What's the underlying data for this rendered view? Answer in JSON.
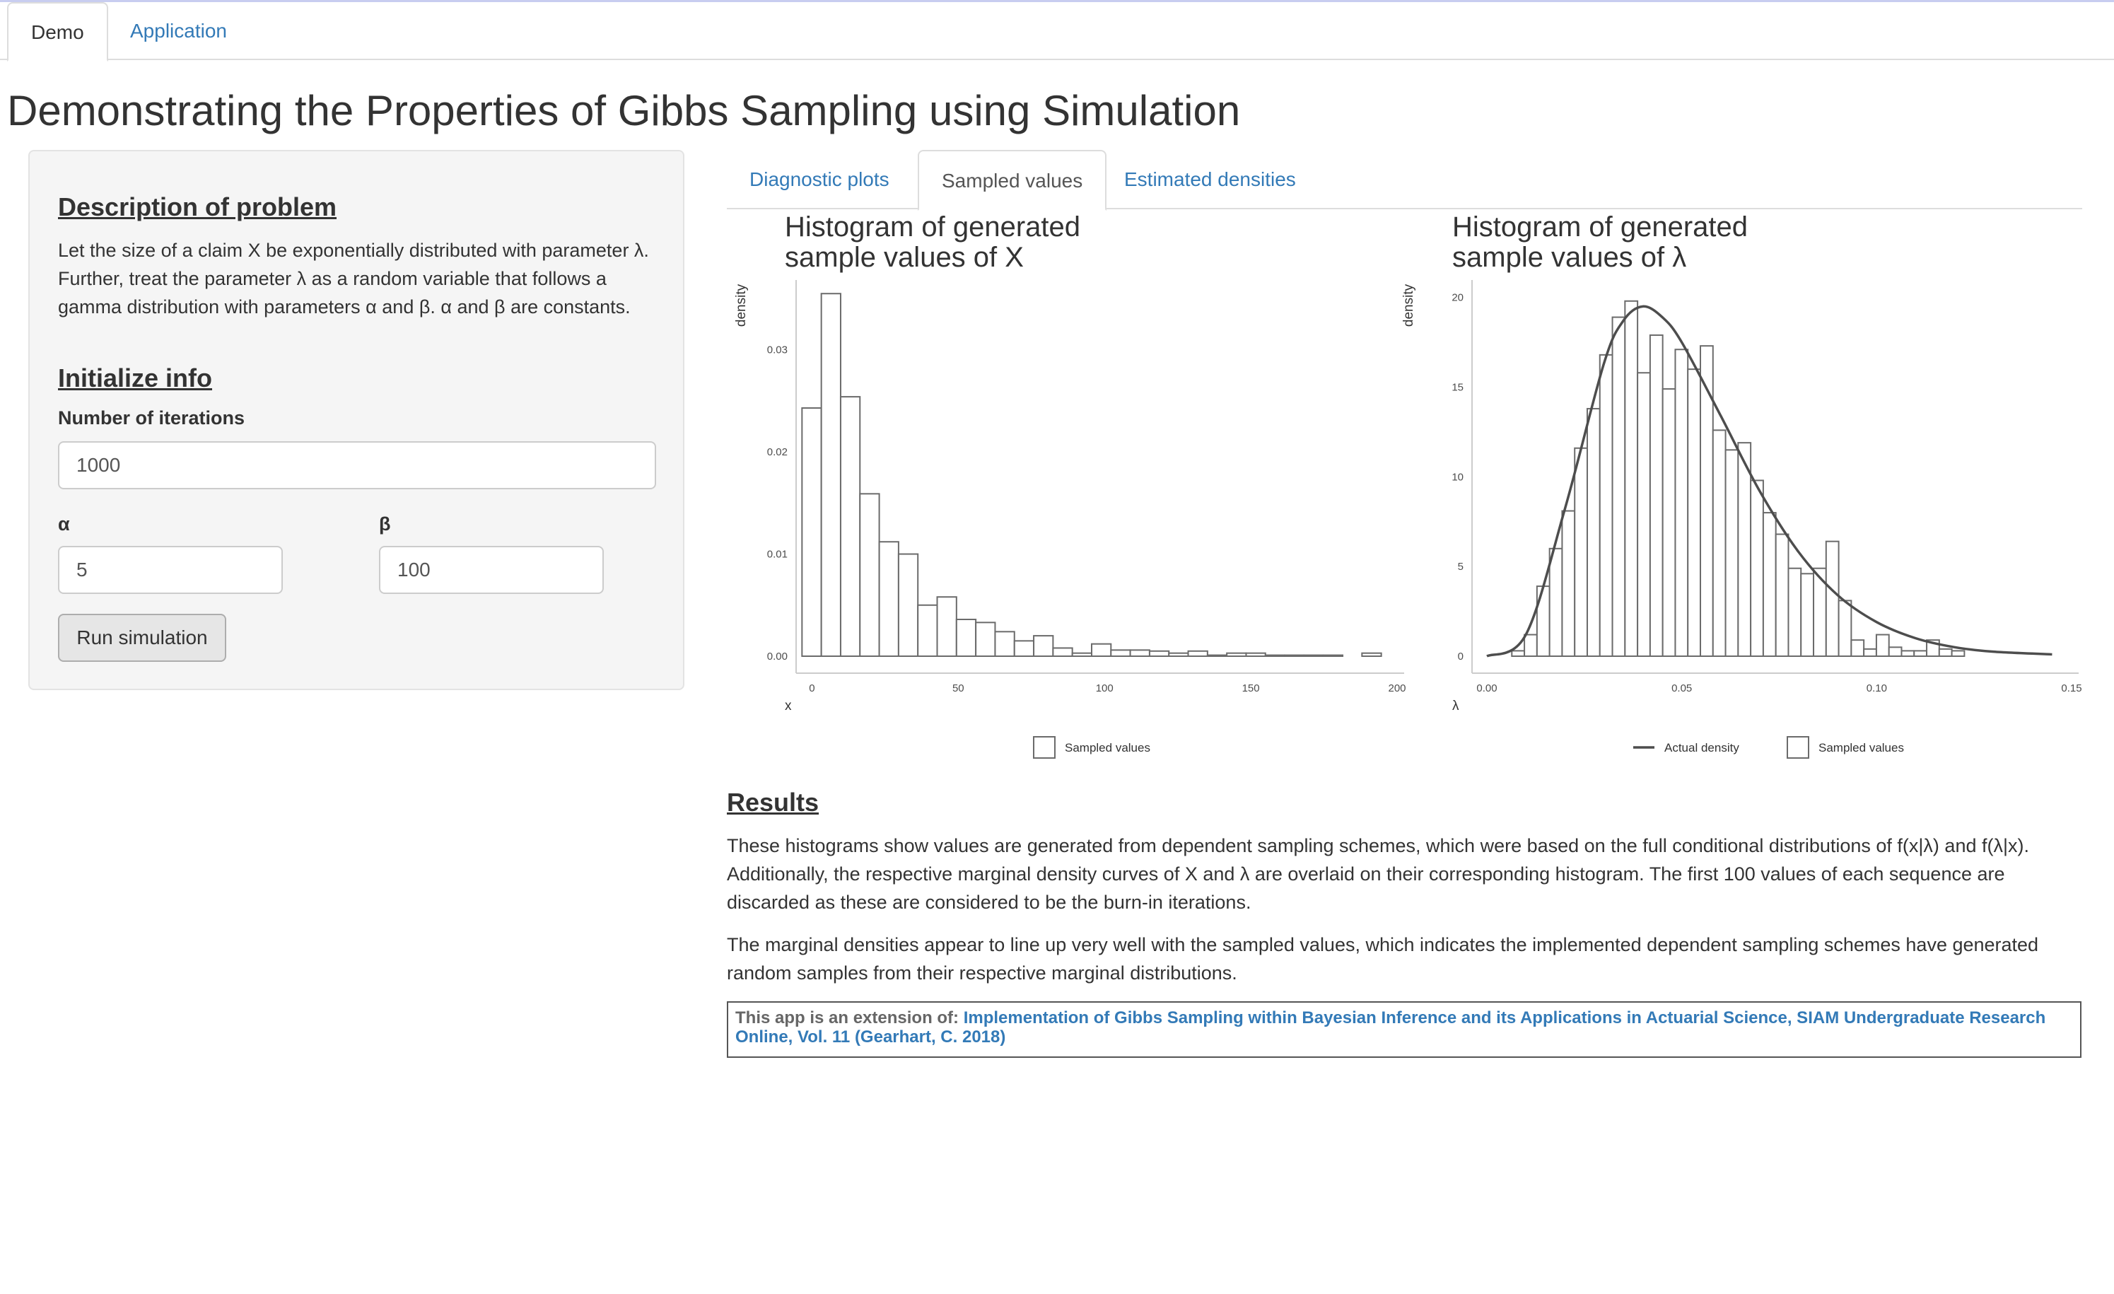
{
  "nav": {
    "tabs": [
      {
        "label": "Demo",
        "active": true
      },
      {
        "label": "Application",
        "active": false
      }
    ]
  },
  "page_title": "Demonstrating the Properties of Gibbs Sampling using Simulation",
  "sidebar": {
    "description_heading": "Description of problem",
    "description_text": "Let the size of a claim X be exponentially distributed with parameter λ. Further, treat the parameter λ as a random variable that follows a gamma distribution with parameters α and β. α and β are constants.",
    "init_heading": "Initialize info",
    "iterations_label": "Number of iterations",
    "iterations_value": "1000",
    "alpha_label": "α",
    "alpha_value": "5",
    "beta_label": "β",
    "beta_value": "100",
    "run_button": "Run simulation"
  },
  "main_tabs": [
    {
      "label": "Diagnostic plots",
      "active": false
    },
    {
      "label": "Sampled values",
      "active": true
    },
    {
      "label": "Estimated densities",
      "active": false
    }
  ],
  "chart_data": [
    {
      "type": "bar",
      "title": "Histogram of generated sample values of X",
      "title_lines": [
        "Histogram of generated",
        "sample values of X"
      ],
      "xlabel": "x",
      "ylabel": "density",
      "xlim": [
        -3,
        200
      ],
      "ylim": [
        0,
        0.036
      ],
      "xticks": [
        0,
        50,
        100,
        150,
        200
      ],
      "xtick_labels": [
        "0",
        "50",
        "100",
        "150",
        "200"
      ],
      "yticks": [
        0,
        0.01,
        0.02,
        0.03
      ],
      "ytick_labels": [
        "0.00",
        "0.01",
        "0.02",
        "0.03"
      ],
      "bin_start": -3.4,
      "bin_width": 6.6,
      "densities": [
        0.0243,
        0.0355,
        0.0254,
        0.0159,
        0.0112,
        0.01,
        0.005,
        0.0058,
        0.0036,
        0.0033,
        0.0024,
        0.0015,
        0.002,
        0.0008,
        0.0003,
        0.0012,
        0.0006,
        0.0006,
        0.0005,
        0.0003,
        0.0005,
        0.0001,
        0.0003,
        0.0003,
        0.0001,
        0.0001,
        0.0001,
        0.0001,
        0.0,
        0.0003,
        0.0,
        0.0
      ],
      "legend": [
        {
          "label": "Sampled values",
          "kind": "box"
        }
      ],
      "legend_position": "bottom"
    },
    {
      "type": "bar",
      "title": "Histogram of generated sample values of λ",
      "title_lines": [
        "Histogram of generated",
        "sample values of λ"
      ],
      "xlabel": "λ",
      "ylabel": "density",
      "xlim": [
        -0.002,
        0.15
      ],
      "ylim": [
        0,
        20.5
      ],
      "xticks": [
        0,
        0.05,
        0.1,
        0.15
      ],
      "xtick_labels": [
        "0.00",
        "0.05",
        "0.10",
        "0.15"
      ],
      "yticks": [
        0,
        5,
        10,
        15,
        20
      ],
      "ytick_labels": [
        "0",
        "5",
        "10",
        "15",
        "20"
      ],
      "bin_start": 0.0064,
      "bin_width": 0.003225,
      "densities": [
        0.3,
        1.2,
        3.9,
        6.0,
        8.1,
        11.6,
        13.8,
        16.8,
        18.9,
        19.8,
        15.8,
        17.9,
        14.9,
        17.1,
        16.0,
        17.3,
        12.6,
        11.5,
        11.9,
        9.8,
        8.0,
        6.8,
        4.9,
        4.6,
        4.9,
        6.4,
        3.1,
        0.9,
        0.4,
        1.2,
        0.5,
        0.3,
        0.3,
        0.9,
        0.4,
        0.3
      ],
      "curve": {
        "name": "Actual density",
        "x": [
          0,
          0.01,
          0.02,
          0.03,
          0.035,
          0.04,
          0.045,
          0.05,
          0.06,
          0.07,
          0.08,
          0.09,
          0.1,
          0.11,
          0.12,
          0.13,
          0.145
        ],
        "y": [
          0,
          1.2,
          8.2,
          16.3,
          18.7,
          19.5,
          18.9,
          17.5,
          13.4,
          9.2,
          5.8,
          3.4,
          1.9,
          1.0,
          0.5,
          0.25,
          0.1
        ]
      },
      "legend": [
        {
          "label": "Actual density",
          "kind": "line"
        },
        {
          "label": "Sampled values",
          "kind": "box"
        }
      ],
      "legend_position": "bottom"
    }
  ],
  "results": {
    "heading": "Results",
    "paragraph1": "These histograms show values are generated from dependent sampling schemes, which were based on the full conditional distributions of f(x|λ) and f(λ|x). Additionally, the respective marginal density curves of X and λ are overlaid on their corresponding histogram. The first 100 values of each sequence are discarded as these are considered to be the burn-in iterations.",
    "paragraph2": "The marginal densities appear to line up very well with the sampled values, which indicates the implemented dependent sampling schemes have generated random samples from their respective marginal distributions.",
    "footer_prefix": "This app is an extension of: ",
    "footer_link": "Implementation of Gibbs Sampling within Bayesian Inference and its Applications in Actuarial Science, SIAM Undergraduate Research Online, Vol. 11 (Gearhart, C. 2018)"
  }
}
